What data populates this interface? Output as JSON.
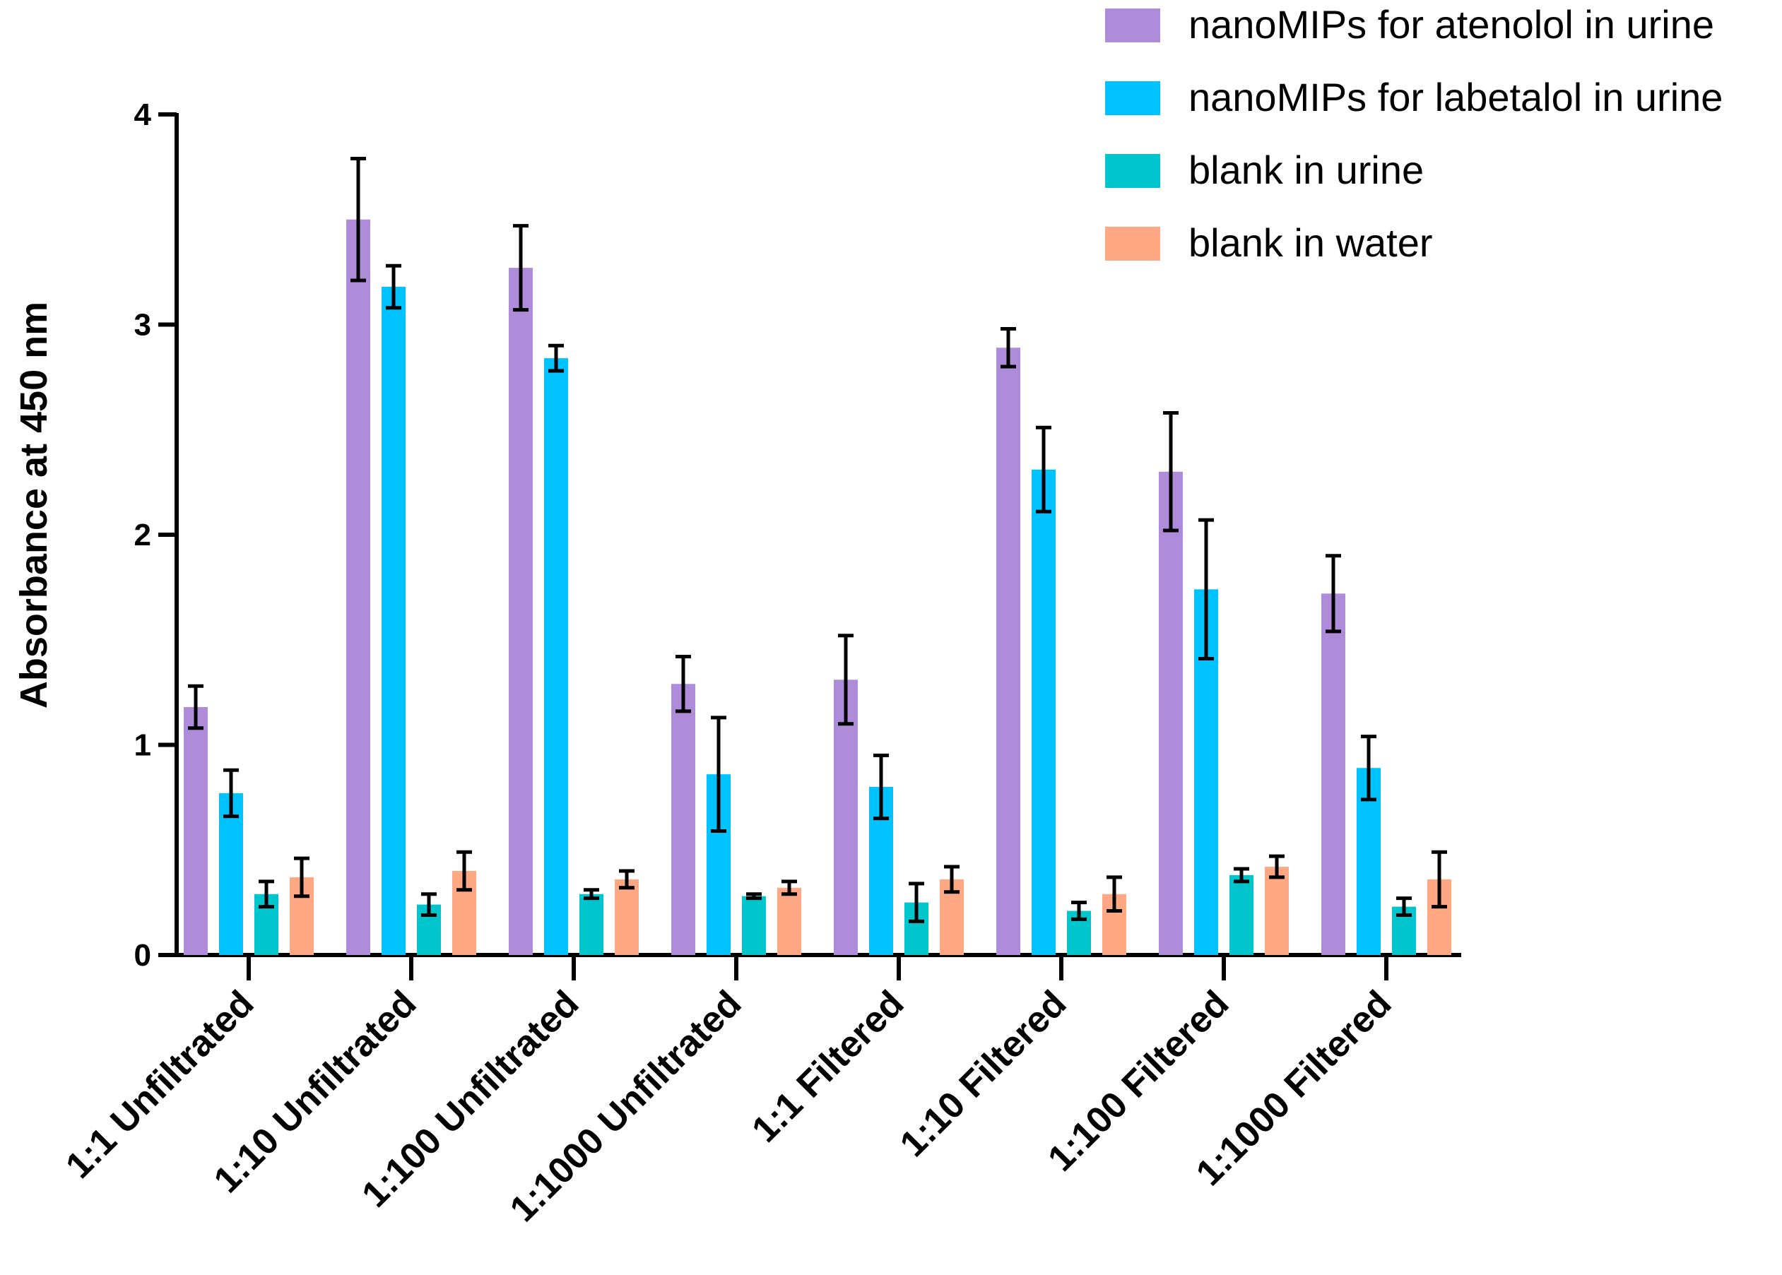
{
  "chart_data": {
    "type": "bar",
    "title": "",
    "xlabel": "",
    "ylabel": "Absorbance at 450 nm",
    "ylim": [
      0,
      4
    ],
    "yticks": [
      0,
      1,
      2,
      3,
      4
    ],
    "ytick_labels": [
      "0",
      "1",
      "2",
      "3",
      "4"
    ],
    "grid": false,
    "legend_position": "top-right",
    "categories": [
      "1:1 Unfiltrated",
      "1:10 Unfiltrated",
      "1:100 Unfiltrated",
      "1:1000 Unfiltrated",
      "1:1 Filtered",
      "1:10 Filtered",
      "1:100 Filtered",
      "1:1000 Filtered"
    ],
    "series": [
      {
        "name": "nanoMIPs for atenolol in urine",
        "color": "#AE8CDA",
        "values": [
          1.18,
          3.5,
          3.27,
          1.29,
          1.31,
          2.89,
          2.3,
          1.72
        ],
        "errors": [
          0.1,
          0.29,
          0.2,
          0.13,
          0.21,
          0.09,
          0.28,
          0.18
        ]
      },
      {
        "name": "nanoMIPs for labetalol in urine",
        "color": "#00C2FF",
        "values": [
          0.77,
          3.18,
          2.84,
          0.86,
          0.8,
          2.31,
          1.74,
          0.89
        ],
        "errors": [
          0.11,
          0.1,
          0.06,
          0.27,
          0.15,
          0.2,
          0.33,
          0.15
        ]
      },
      {
        "name": "blank in urine",
        "color": "#00C5CC",
        "values": [
          0.29,
          0.24,
          0.29,
          0.28,
          0.25,
          0.21,
          0.38,
          0.23
        ],
        "errors": [
          0.06,
          0.05,
          0.02,
          0.01,
          0.09,
          0.04,
          0.03,
          0.04
        ]
      },
      {
        "name": "blank in water",
        "color": "#FFA883",
        "values": [
          0.37,
          0.4,
          0.36,
          0.32,
          0.36,
          0.29,
          0.42,
          0.36
        ],
        "errors": [
          0.09,
          0.09,
          0.04,
          0.03,
          0.06,
          0.08,
          0.05,
          0.13
        ]
      }
    ]
  }
}
